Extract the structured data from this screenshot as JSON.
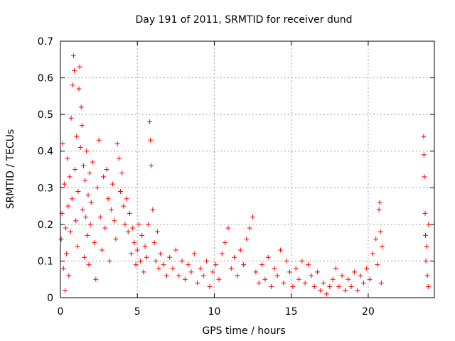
{
  "chart_data": {
    "type": "scatter",
    "title": "Day 191 of 2011, SRMTID for receiver dund",
    "xlabel": "GPS time / hours",
    "ylabel": "SRMTID / TECUs",
    "xlim": [
      0,
      24.3
    ],
    "ylim": [
      0,
      0.7
    ],
    "xticks": [
      0,
      5,
      10,
      15,
      20
    ],
    "xtick_labels": [
      "0",
      "5",
      "10",
      "15",
      "20"
    ],
    "yticks": [
      0,
      0.1,
      0.2,
      0.3,
      0.4,
      0.5,
      0.6,
      0.7
    ],
    "ytick_labels": [
      "0",
      "0.1",
      "0.2",
      "0.3",
      "0.4",
      "0.5",
      "0.6",
      "0.7"
    ],
    "grid": true,
    "marker": "+",
    "series": [
      {
        "name": "SRMTID",
        "color": "#ff0000",
        "points": [
          [
            0.05,
            0.16
          ],
          [
            0.1,
            0.23
          ],
          [
            0.15,
            0.42
          ],
          [
            0.2,
            0.08
          ],
          [
            0.25,
            0.31
          ],
          [
            0.3,
            0.02
          ],
          [
            0.35,
            0.19
          ],
          [
            0.4,
            0.12
          ],
          [
            0.45,
            0.38
          ],
          [
            0.5,
            0.25
          ],
          [
            0.55,
            0.06
          ],
          [
            0.6,
            0.33
          ],
          [
            0.65,
            0.18
          ],
          [
            0.7,
            0.49
          ],
          [
            0.75,
            0.27
          ],
          [
            0.8,
            0.58
          ],
          [
            0.85,
            0.66
          ],
          [
            0.9,
            0.62
          ],
          [
            0.95,
            0.35
          ],
          [
            1.0,
            0.21
          ],
          [
            1.05,
            0.44
          ],
          [
            1.1,
            0.14
          ],
          [
            1.15,
            0.29
          ],
          [
            1.2,
            0.57
          ],
          [
            1.25,
            0.63
          ],
          [
            1.3,
            0.41
          ],
          [
            1.35,
            0.52
          ],
          [
            1.4,
            0.47
          ],
          [
            1.45,
            0.24
          ],
          [
            1.5,
            0.36
          ],
          [
            1.55,
            0.11
          ],
          [
            1.6,
            0.32
          ],
          [
            1.65,
            0.22
          ],
          [
            1.7,
            0.4
          ],
          [
            1.75,
            0.17
          ],
          [
            1.8,
            0.28
          ],
          [
            1.85,
            0.09
          ],
          [
            1.9,
            0.34
          ],
          [
            1.95,
            0.2
          ],
          [
            2.0,
            0.26
          ],
          [
            2.1,
            0.37
          ],
          [
            2.2,
            0.15
          ],
          [
            2.3,
            0.05
          ],
          [
            2.4,
            0.3
          ],
          [
            2.5,
            0.43
          ],
          [
            2.6,
            0.22
          ],
          [
            2.7,
            0.13
          ],
          [
            2.8,
            0.33
          ],
          [
            2.9,
            0.19
          ],
          [
            3.0,
            0.35
          ],
          [
            3.1,
            0.27
          ],
          [
            3.2,
            0.1
          ],
          [
            3.3,
            0.24
          ],
          [
            3.4,
            0.31
          ],
          [
            3.5,
            0.21
          ],
          [
            3.6,
            0.16
          ],
          [
            3.7,
            0.42
          ],
          [
            3.8,
            0.38
          ],
          [
            3.9,
            0.29
          ],
          [
            4.0,
            0.34
          ],
          [
            4.1,
            0.25
          ],
          [
            4.2,
            0.2
          ],
          [
            4.3,
            0.27
          ],
          [
            4.4,
            0.18
          ],
          [
            4.5,
            0.23
          ],
          [
            4.6,
            0.12
          ],
          [
            4.7,
            0.19
          ],
          [
            4.8,
            0.15
          ],
          [
            4.9,
            0.09
          ],
          [
            5.0,
            0.13
          ],
          [
            5.1,
            0.2
          ],
          [
            5.2,
            0.1
          ],
          [
            5.3,
            0.17
          ],
          [
            5.4,
            0.07
          ],
          [
            5.5,
            0.14
          ],
          [
            5.6,
            0.11
          ],
          [
            5.7,
            0.2
          ],
          [
            5.8,
            0.48
          ],
          [
            5.85,
            0.43
          ],
          [
            5.9,
            0.36
          ],
          [
            6.0,
            0.24
          ],
          [
            6.1,
            0.15
          ],
          [
            6.2,
            0.1
          ],
          [
            6.3,
            0.18
          ],
          [
            6.4,
            0.08
          ],
          [
            6.5,
            0.12
          ],
          [
            6.7,
            0.09
          ],
          [
            6.9,
            0.06
          ],
          [
            7.1,
            0.11
          ],
          [
            7.3,
            0.08
          ],
          [
            7.5,
            0.13
          ],
          [
            7.7,
            0.06
          ],
          [
            7.9,
            0.1
          ],
          [
            8.1,
            0.05
          ],
          [
            8.3,
            0.09
          ],
          [
            8.5,
            0.07
          ],
          [
            8.7,
            0.12
          ],
          [
            8.9,
            0.04
          ],
          [
            9.1,
            0.08
          ],
          [
            9.3,
            0.06
          ],
          [
            9.5,
            0.1
          ],
          [
            9.7,
            0.03
          ],
          [
            9.9,
            0.07
          ],
          [
            10.1,
            0.09
          ],
          [
            10.3,
            0.05
          ],
          [
            10.5,
            0.12
          ],
          [
            10.7,
            0.15
          ],
          [
            10.9,
            0.19
          ],
          [
            11.1,
            0.08
          ],
          [
            11.3,
            0.11
          ],
          [
            11.5,
            0.06
          ],
          [
            11.7,
            0.13
          ],
          [
            11.9,
            0.09
          ],
          [
            12.1,
            0.16
          ],
          [
            12.3,
            0.19
          ],
          [
            12.5,
            0.22
          ],
          [
            12.7,
            0.07
          ],
          [
            12.9,
            0.04
          ],
          [
            13.1,
            0.09
          ],
          [
            13.3,
            0.05
          ],
          [
            13.5,
            0.11
          ],
          [
            13.7,
            0.03
          ],
          [
            13.9,
            0.08
          ],
          [
            14.1,
            0.06
          ],
          [
            14.3,
            0.13
          ],
          [
            14.5,
            0.04
          ],
          [
            14.7,
            0.1
          ],
          [
            14.9,
            0.07
          ],
          [
            15.1,
            0.03
          ],
          [
            15.3,
            0.08
          ],
          [
            15.5,
            0.05
          ],
          [
            15.7,
            0.1
          ],
          [
            15.9,
            0.04
          ],
          [
            16.1,
            0.09
          ],
          [
            16.3,
            0.06
          ],
          [
            16.5,
            0.03
          ],
          [
            16.7,
            0.07
          ],
          [
            16.9,
            0.02
          ],
          [
            17.1,
            0.04
          ],
          [
            17.3,
            0.01
          ],
          [
            17.5,
            0.03
          ],
          [
            17.7,
            0.05
          ],
          [
            17.9,
            0.08
          ],
          [
            18.1,
            0.03
          ],
          [
            18.3,
            0.06
          ],
          [
            18.5,
            0.02
          ],
          [
            18.7,
            0.05
          ],
          [
            18.9,
            0.03
          ],
          [
            19.1,
            0.07
          ],
          [
            19.3,
            0.02
          ],
          [
            19.5,
            0.06
          ],
          [
            19.7,
            0.04
          ],
          [
            19.9,
            0.08
          ],
          [
            20.1,
            0.05
          ],
          [
            20.3,
            0.12
          ],
          [
            20.5,
            0.16
          ],
          [
            20.6,
            0.09
          ],
          [
            20.7,
            0.24
          ],
          [
            20.75,
            0.26
          ],
          [
            20.8,
            0.18
          ],
          [
            20.85,
            0.04
          ],
          [
            20.9,
            0.14
          ],
          [
            23.6,
            0.44
          ],
          [
            23.62,
            0.39
          ],
          [
            23.65,
            0.33
          ],
          [
            23.7,
            0.23
          ],
          [
            23.72,
            0.17
          ],
          [
            23.75,
            0.1
          ],
          [
            23.8,
            0.14
          ],
          [
            23.85,
            0.06
          ],
          [
            23.9,
            0.03
          ],
          [
            23.92,
            0.2
          ]
        ]
      }
    ]
  }
}
